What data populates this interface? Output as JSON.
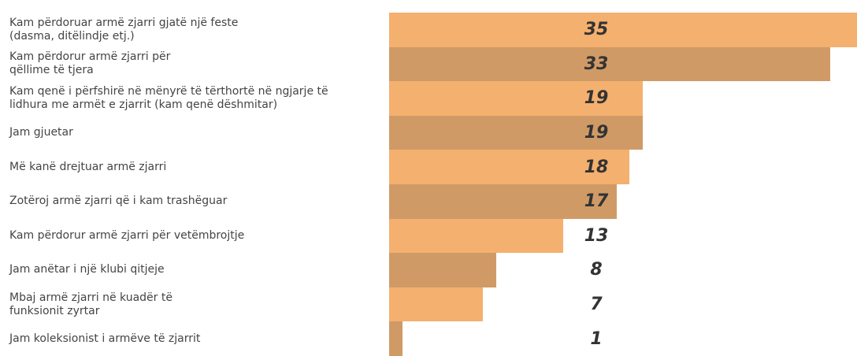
{
  "chart_data": {
    "type": "hbar",
    "categories": [
      "Kam përdoruar armë zjarri gjatë një feste\n(dasma, ditëlindje etj.)",
      "Kam përdorur armë zjarri për\nqëllime të tjera",
      "Kam qenë i përfshirë në mënyrë të tërthortë në ngjarje të\nlidhura me armët e zjarrit (kam qenë dëshmitar)",
      "Jam gjuetar",
      "Më kanë drejtuar armë zjarri",
      "Zotëroj armë zjarri që i kam trashëguar",
      "Kam përdorur armë zjarri për vetëmbrojtje",
      "Jam anëtar i një klubi qitjeje",
      "Mbaj armë zjarri në kuadër të\nfunksionit zyrtar",
      "Jam koleksionist i armëve të zjarrit"
    ],
    "values": [
      35,
      33,
      19,
      19,
      18,
      17,
      13,
      8,
      7,
      1
    ],
    "colors": [
      "#f4b06f",
      "#d09a66"
    ]
  }
}
